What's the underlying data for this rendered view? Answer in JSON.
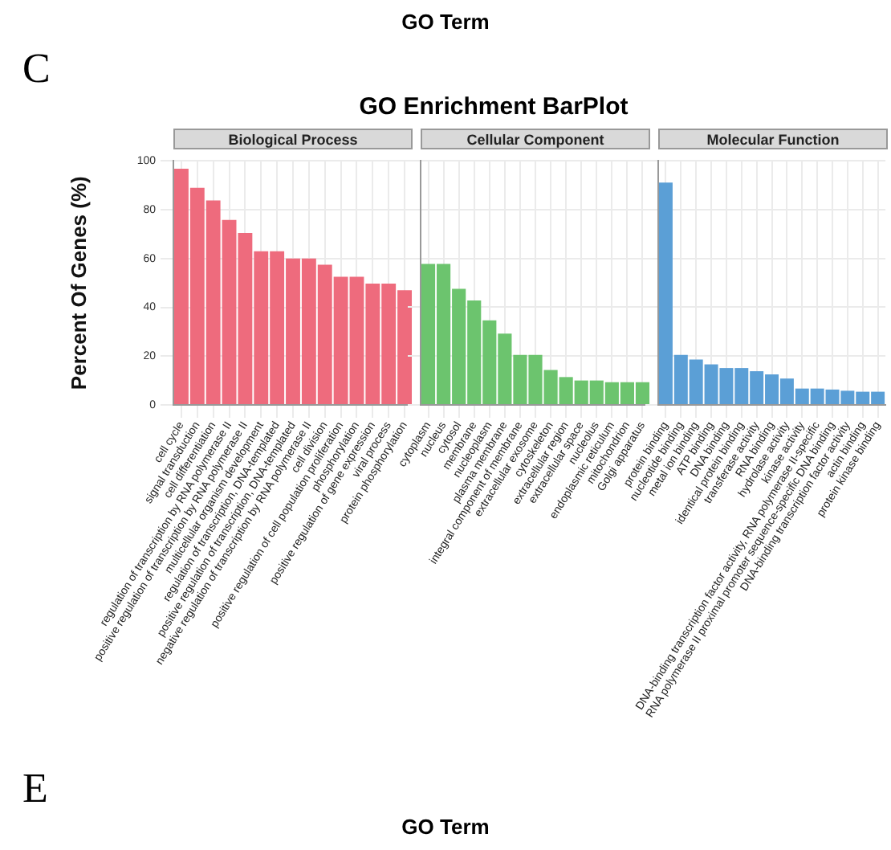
{
  "chart_data": [
    {
      "type": "bar",
      "title": "Biological Process",
      "ylabel": "Percent Of Genes (%)",
      "annotations": [
        "GO Term",
        "C",
        "GO Enrichment BarPlot",
        "E",
        "GO Term"
      ],
      "categories": [
        "cell cycle",
        "signal transduction",
        "cell differentiation",
        "regulation of transcription by RNA polymerase II",
        "positive regulation of transcription by RNA polymerase II",
        "multicellular organism development",
        "regulation of transcription, DNA-templated",
        "positive regulation of transcription, DNA-templated",
        "negative regulation of transcription by RNA polymerase II",
        "cell division",
        "positive regulation of cell population proliferation",
        "phosphorylation",
        "positive regulation of gene expression",
        "viral process",
        "protein phosphorylation"
      ],
      "values": [
        96.8,
        89,
        83.8,
        75.8,
        70.5,
        63,
        63,
        60,
        60,
        57.5,
        52.5,
        52.5,
        49.7,
        49.7,
        47
      ],
      "color": "#ee6b7d",
      "ylim": [
        0,
        100
      ],
      "yticks": [
        0,
        20,
        40,
        60,
        80,
        100
      ],
      "grid": true
    },
    {
      "type": "bar",
      "title": "Cellular Component",
      "tick_labels": "x",
      "categories": [
        "cytoplasm",
        "nucleus",
        "cytosol",
        "membrane",
        "nucleoplasm",
        "plasma membrane",
        "integral component of membrane",
        "extracellular exosome",
        "cytoskeleton",
        "extracellular region",
        "extracellular space",
        "nucleolus",
        "endoplasmic reticulum",
        "mitochondrion",
        "Golgi apparatus"
      ],
      "values": [
        57.7,
        57.7,
        47.5,
        42.8,
        34.6,
        29.2,
        20.5,
        20.5,
        14.3,
        11.4,
        10,
        10,
        9.3,
        9.3,
        9.3
      ],
      "color": "#6cc46e",
      "ylim": [
        0,
        100
      ],
      "yticks": [
        0,
        20,
        40,
        60,
        80,
        100
      ],
      "grid": true
    },
    {
      "type": "bar",
      "title": "Molecular Function",
      "tick_labels": "x",
      "categories": [
        "protein binding",
        "nucleotide binding",
        "metal ion binding",
        "ATP binding",
        "DNA binding",
        "identical protein binding",
        "transferase activity",
        "RNA binding",
        "hydrolase activity",
        "kinase activity",
        "DNA-binding transcription factor activity, RNA polymerase II-specific",
        "RNA polymerase II proximal promoter sequence-specific DNA binding",
        "DNA-binding transcription factor activity",
        "actin binding",
        "protein kinase binding"
      ],
      "values": [
        91,
        20.5,
        18.6,
        16.6,
        15.1,
        15.1,
        13.8,
        12.5,
        10.8,
        6.7,
        6.7,
        6.3,
        5.8,
        5.4,
        5.4
      ],
      "color": "#5b9fd6",
      "ylim": [
        0,
        100
      ],
      "yticks": [
        0,
        20,
        40,
        60,
        80,
        100
      ],
      "grid": true
    }
  ]
}
